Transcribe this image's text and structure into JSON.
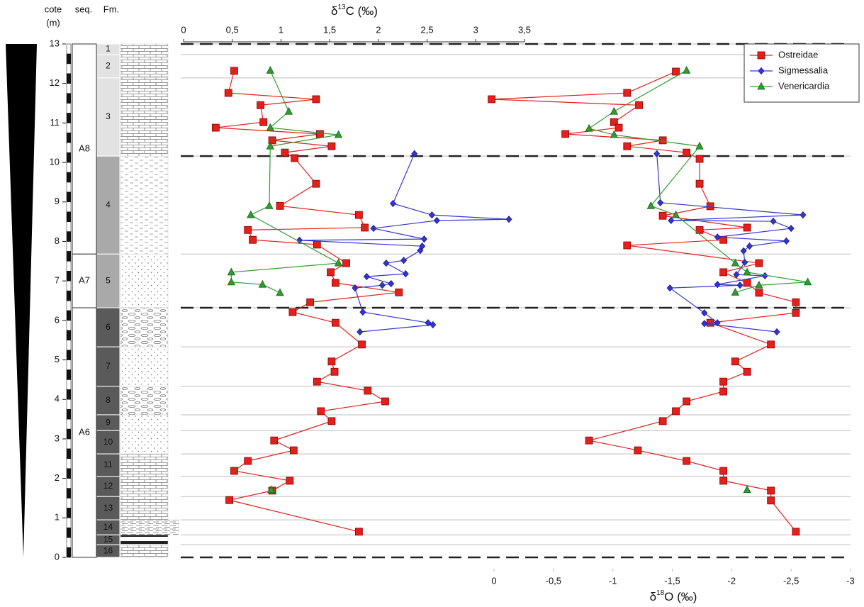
{
  "chart_data": {
    "type": "line",
    "y_label": "cote",
    "y_unit": "(m)",
    "ylim": [
      0,
      13
    ],
    "yticks": [
      0,
      1,
      2,
      3,
      4,
      5,
      6,
      7,
      8,
      9,
      10,
      11,
      12,
      13
    ],
    "x_top": {
      "label": {
        "symbol": "δ",
        "isotope": "13",
        "rest": "C (‰)"
      },
      "xlim": [
        0,
        3.5
      ],
      "xticks": [
        0,
        {
          "value": 0.5,
          "label": "0,5"
        },
        1,
        {
          "value": 1.5,
          "label": "1,5"
        },
        2,
        {
          "value": 2.5,
          "label": "2,5"
        },
        3,
        {
          "value": 3.5,
          "label": "3,5"
        }
      ]
    },
    "x_bottom": {
      "label": {
        "symbol": "δ",
        "isotope": "18",
        "rest": "O (‰)"
      },
      "xlim": [
        0,
        -3
      ],
      "xticks": [
        0,
        {
          "value": -0.5,
          "label": "-0,5"
        },
        -1,
        {
          "value": -1.5,
          "label": "-1,5"
        },
        -2,
        {
          "value": -2.5,
          "label": "-2,5"
        },
        -3
      ]
    },
    "legend": "upper right",
    "series": [
      {
        "name": "Ostreidae",
        "color": "#e3201b",
        "marker": "square",
        "d13C": {
          "depth": [
            12.32,
            11.76,
            11.6,
            11.45,
            11.02,
            10.88,
            10.72,
            10.56,
            10.41,
            10.25,
            10.11,
            9.46,
            8.9,
            8.67,
            8.35,
            8.29,
            8.04,
            7.92,
            7.45,
            7.22,
            6.95,
            6.71,
            6.46,
            6.21,
            5.94,
            5.39,
            4.96,
            4.7,
            4.45,
            4.22,
            3.95,
            3.7,
            3.45,
            2.96,
            2.71,
            2.44,
            2.19,
            1.94,
            1.69,
            1.45,
            0.65
          ],
          "values": [
            0.52,
            0.46,
            1.36,
            0.79,
            0.82,
            0.33,
            1.4,
            0.91,
            1.52,
            1.04,
            1.14,
            1.36,
            0.99,
            1.8,
            1.86,
            0.66,
            0.71,
            1.37,
            1.67,
            1.51,
            1.56,
            2.21,
            1.3,
            1.12,
            1.56,
            1.83,
            1.52,
            1.55,
            1.37,
            1.89,
            2.07,
            1.41,
            1.52,
            0.93,
            1.13,
            0.66,
            0.52,
            1.09,
            0.91,
            0.47,
            1.8
          ]
        },
        "d18O": {
          "depth": [
            12.3,
            11.76,
            11.6,
            11.45,
            11.02,
            10.88,
            10.72,
            10.56,
            10.41,
            10.25,
            10.09,
            9.46,
            8.89,
            8.65,
            8.35,
            8.29,
            8.04,
            7.9,
            7.45,
            7.22,
            6.95,
            6.7,
            6.46,
            6.19,
            5.94,
            5.39,
            4.96,
            4.7,
            4.45,
            4.2,
            3.95,
            3.7,
            3.45,
            2.96,
            2.71,
            2.44,
            2.19,
            1.94,
            1.69,
            1.44,
            0.65
          ],
          "values": [
            -1.53,
            -1.12,
            0.02,
            -1.22,
            -1.01,
            -1.05,
            -0.6,
            -1.42,
            -1.12,
            -1.62,
            -1.73,
            -1.73,
            -1.82,
            -1.42,
            -2.13,
            -1.73,
            -1.93,
            -1.12,
            -2.23,
            -1.93,
            -2.13,
            -2.23,
            -2.54,
            -2.54,
            -1.82,
            -2.33,
            -2.03,
            -2.13,
            -1.93,
            -1.93,
            -1.62,
            -1.53,
            -1.42,
            -0.8,
            -1.21,
            -1.62,
            -1.93,
            -1.93,
            -2.33,
            -2.33,
            -2.54
          ]
        }
      },
      {
        "name": "Sigmessalia",
        "color": "#3434d4",
        "marker": "diamond",
        "d13C": {
          "depth": [
            10.22,
            8.96,
            8.67,
            8.56,
            8.53,
            8.33,
            8.06,
            8.03,
            7.88,
            7.77,
            7.52,
            7.45,
            7.18,
            7.11,
            6.93,
            6.89,
            6.82,
            6.21,
            5.94,
            5.89,
            5.71
          ],
          "values": [
            2.37,
            2.15,
            2.55,
            3.34,
            2.6,
            1.95,
            2.47,
            1.19,
            2.45,
            2.43,
            2.26,
            2.08,
            2.28,
            1.88,
            2.13,
            2.04,
            1.76,
            1.84,
            2.51,
            2.56,
            1.81
          ]
        },
        "d18O": {
          "depth": [
            10.22,
            8.98,
            8.67,
            8.53,
            8.51,
            8.33,
            8.11,
            8.01,
            7.88,
            7.76,
            7.47,
            7.16,
            7.13,
            6.91,
            6.89,
            6.82,
            6.19,
            5.94,
            5.92,
            5.71
          ],
          "values": [
            -1.37,
            -1.4,
            -2.6,
            -1.49,
            -2.35,
            -2.5,
            -1.88,
            -2.46,
            -2.15,
            -2.1,
            -2.11,
            -2.04,
            -2.28,
            -1.88,
            -2.07,
            -1.48,
            -1.77,
            -1.88,
            -1.77,
            -2.38
          ]
        }
      },
      {
        "name": "Venericardia",
        "color": "#2e9e2e",
        "marker": "triangle",
        "d13C": {
          "depth": [
            12.33,
            11.29,
            10.88,
            10.7,
            10.41,
            8.9,
            8.67,
            7.45,
            7.22,
            6.97,
            6.91,
            6.7,
            null,
            1.71
          ],
          "values": [
            0.89,
            1.08,
            0.89,
            1.59,
            0.89,
            0.88,
            0.69,
            1.59,
            0.49,
            0.49,
            0.81,
            0.99,
            null,
            0.9
          ]
        },
        "d18O": {
          "depth": [
            12.33,
            11.29,
            10.86,
            10.7,
            10.41,
            8.9,
            8.67,
            7.45,
            7.22,
            6.97,
            6.89,
            6.71,
            null,
            1.71
          ],
          "values": [
            -1.62,
            -1.01,
            -0.8,
            -1.01,
            -1.73,
            -1.32,
            -1.53,
            -2.03,
            -2.13,
            -2.64,
            -2.23,
            -2.03,
            null,
            -2.13
          ]
        }
      }
    ],
    "strat": {
      "seq_label": "seq.",
      "fm_label": "Fm.",
      "dashed_levels": [
        0,
        6.32,
        10.16,
        13
      ],
      "sequences": [
        {
          "name": "A8",
          "top": 13,
          "base": 7.68
        },
        {
          "name": "A7",
          "top": 7.68,
          "base": 6.32
        },
        {
          "name": "A6",
          "top": 6.32,
          "base": 0
        }
      ],
      "formations": [
        {
          "name": "1",
          "top": 13,
          "base": 12.73,
          "shade": "#e2e2e2",
          "lithology": "limestone"
        },
        {
          "name": "2",
          "top": 12.73,
          "base": 12.14,
          "shade": "#e2e2e2",
          "lithology": "limestone"
        },
        {
          "name": "3",
          "top": 12.14,
          "base": 10.16,
          "shade": "#e2e2e2",
          "lithology": "limestone"
        },
        {
          "name": "4",
          "top": 10.16,
          "base": 7.68,
          "shade": "#a9a9a9",
          "lithology": "marl"
        },
        {
          "name": "5",
          "top": 7.68,
          "base": 6.32,
          "shade": "#a9a9a9",
          "lithology": "sand"
        },
        {
          "name": "6",
          "top": 6.32,
          "base": 5.33,
          "shade": "#5a5a5a",
          "lithology": "nodular"
        },
        {
          "name": "7",
          "top": 5.33,
          "base": 4.33,
          "shade": "#5a5a5a",
          "lithology": "sand"
        },
        {
          "name": "8",
          "top": 4.33,
          "base": 3.61,
          "shade": "#5a5a5a",
          "lithology": "nodular"
        },
        {
          "name": "9",
          "top": 3.61,
          "base": 3.21,
          "shade": "#5a5a5a",
          "lithology": "sand"
        },
        {
          "name": "10",
          "top": 3.21,
          "base": 2.62,
          "shade": "#5a5a5a",
          "lithology": "sand"
        },
        {
          "name": "11",
          "top": 2.62,
          "base": 2.05,
          "shade": "#5a5a5a",
          "lithology": "limestone"
        },
        {
          "name": "12",
          "top": 2.05,
          "base": 1.54,
          "shade": "#5a5a5a",
          "lithology": "limestone"
        },
        {
          "name": "13",
          "top": 1.54,
          "base": 0.95,
          "shade": "#5a5a5a",
          "lithology": "limestone"
        },
        {
          "name": "14",
          "top": 0.95,
          "base": 0.57,
          "shade": "#5a5a5a",
          "lithology": "shale"
        },
        {
          "name": "15",
          "top": 0.57,
          "base": 0.32,
          "shade": "#5a5a5a",
          "lithology": "clay"
        },
        {
          "name": "16",
          "top": 0.32,
          "base": 0,
          "shade": "#5a5a5a",
          "lithology": "limestone"
        }
      ]
    }
  }
}
